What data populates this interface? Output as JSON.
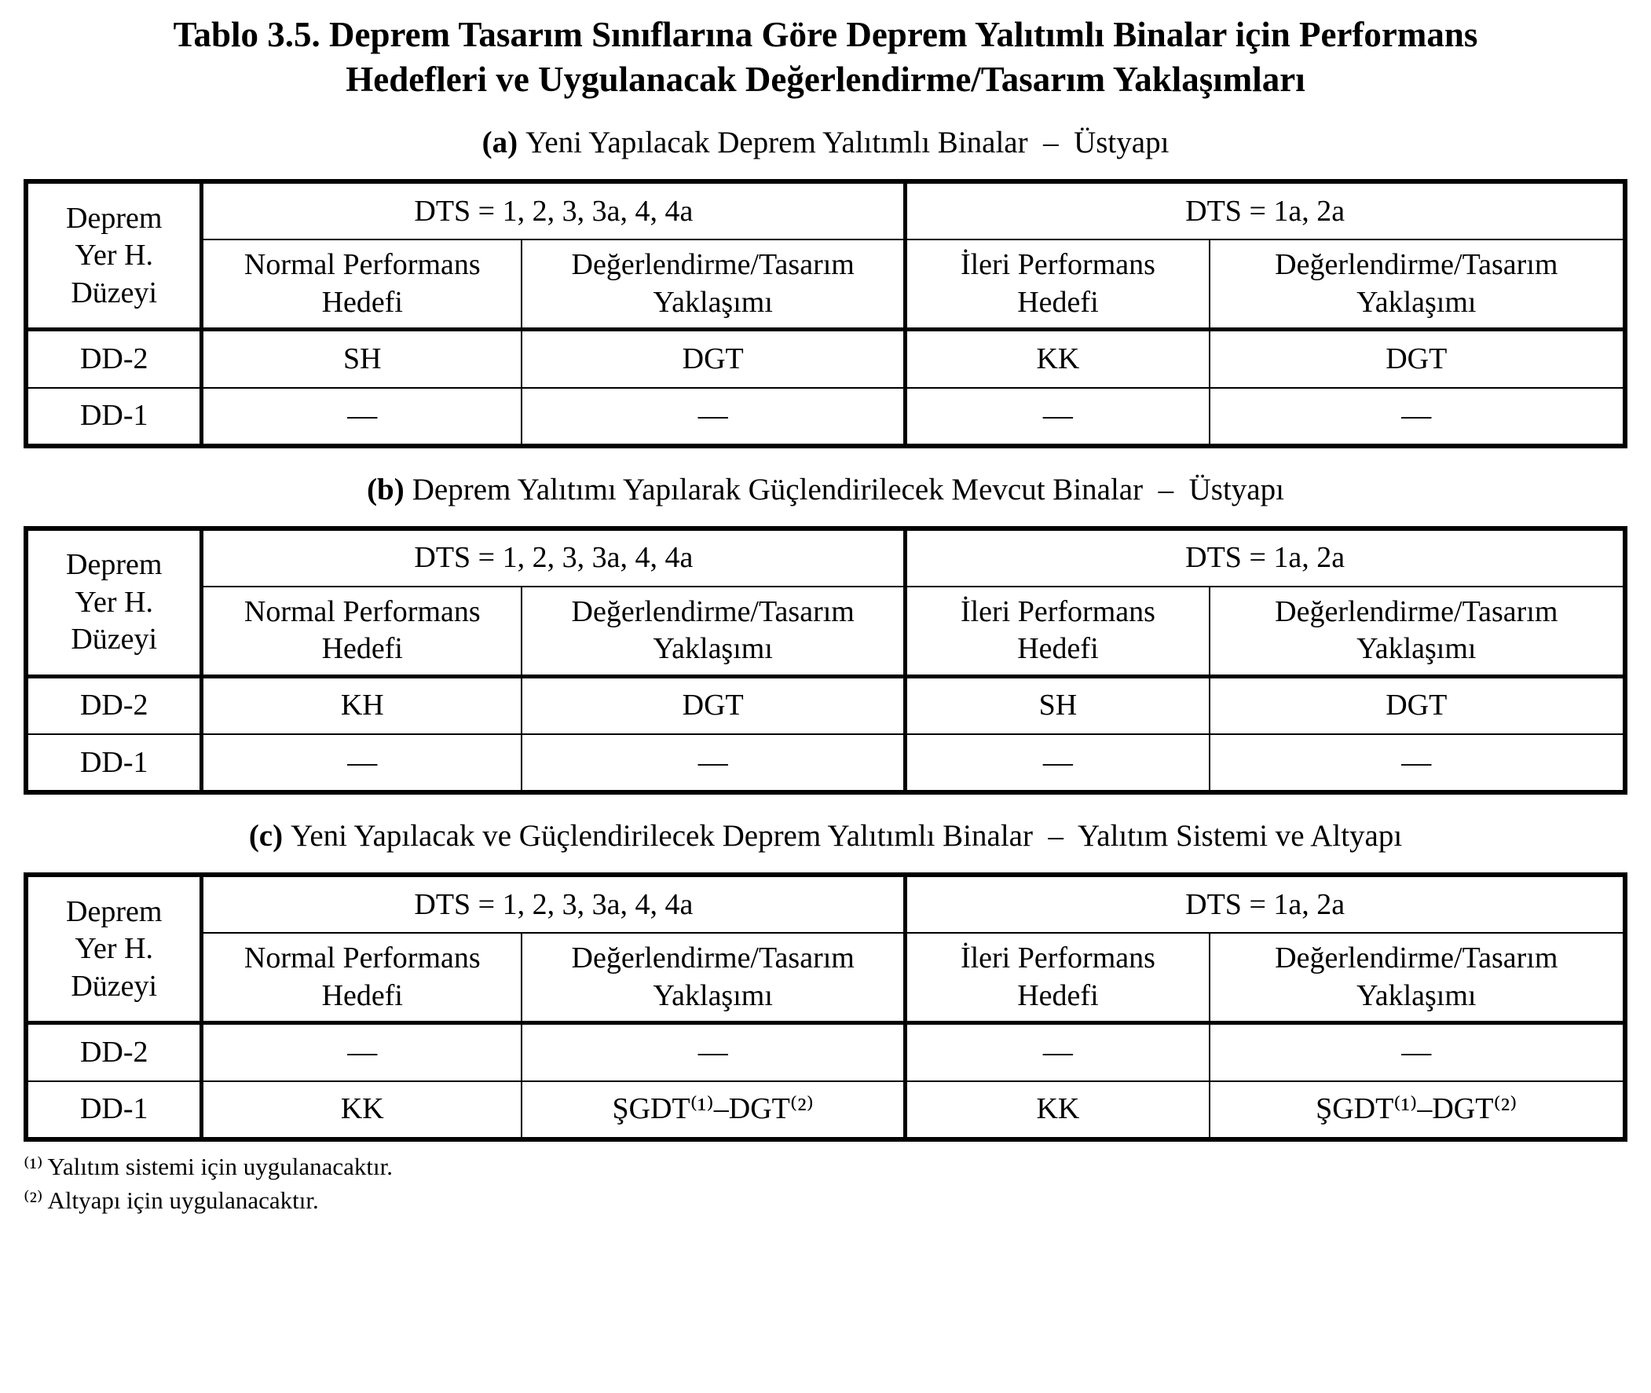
{
  "title": "Tablo 3.5. Deprem Tasarım Sınıflarına Göre Deprem Yalıtımlı Binalar için Performans\nHedefleri ve Uygulanacak Değerlendirme/Tasarım Yaklaşımları",
  "tables": [
    {
      "caption_prefix": "(a)",
      "caption_text": "Yeni Yapılacak Deprem Yalıtımlı Binalar  –  Üstyapı",
      "corner": "Deprem\nYer H.\nDüzeyi",
      "group1": "DTS = 1, 2, 3, 3a, 4, 4a",
      "group2": "DTS = 1a, 2a",
      "subheaders": [
        "Normal Performans\nHedefi",
        "Değerlendirme/Tasarım\nYaklaşımı",
        "İleri Performans\nHedefi",
        "Değerlendirme/Tasarım\nYaklaşımı"
      ],
      "rows": [
        {
          "label": "DD-2",
          "cells": [
            "SH",
            "DGT",
            "KK",
            "DGT"
          ]
        },
        {
          "label": "DD-1",
          "cells": [
            "—",
            "—",
            "—",
            "—"
          ]
        }
      ]
    },
    {
      "caption_prefix": "(b)",
      "caption_text": "Deprem Yalıtımı Yapılarak Güçlendirilecek Mevcut Binalar  –  Üstyapı",
      "corner": "Deprem\nYer H.\nDüzeyi",
      "group1": "DTS = 1, 2, 3, 3a, 4, 4a",
      "group2": "DTS = 1a, 2a",
      "subheaders": [
        "Normal Performans\nHedefi",
        "Değerlendirme/Tasarım\nYaklaşımı",
        "İleri Performans\nHedefi",
        "Değerlendirme/Tasarım\nYaklaşımı"
      ],
      "rows": [
        {
          "label": "DD-2",
          "cells": [
            "KH",
            "DGT",
            "SH",
            "DGT"
          ]
        },
        {
          "label": "DD-1",
          "cells": [
            "—",
            "—",
            "—",
            "—"
          ]
        }
      ]
    },
    {
      "caption_prefix": "(c)",
      "caption_text": "Yeni Yapılacak ve Güçlendirilecek Deprem Yalıtımlı Binalar  –  Yalıtım Sistemi ve Altyapı",
      "corner": "Deprem\nYer H.\nDüzeyi",
      "group1": "DTS = 1, 2, 3, 3a, 4, 4a",
      "group2": "DTS = 1a, 2a",
      "subheaders": [
        "Normal Performans\nHedefi",
        "Değerlendirme/Tasarım\nYaklaşımı",
        "İleri Performans\nHedefi",
        "Değerlendirme/Tasarım\nYaklaşımı"
      ],
      "rows": [
        {
          "label": "DD-2",
          "cells": [
            "—",
            "—",
            "—",
            "—"
          ]
        },
        {
          "label": "DD-1",
          "cells": [
            "KK",
            "ŞGDT⁽¹⁾–DGT⁽²⁾",
            "KK",
            "ŞGDT⁽¹⁾–DGT⁽²⁾"
          ]
        }
      ]
    }
  ],
  "footnotes": [
    {
      "marker": "⁽¹⁾",
      "text": "Yalıtım sistemi için uygulanacaktır."
    },
    {
      "marker": "⁽²⁾",
      "text": "Altyapı için uygulanacaktır."
    }
  ]
}
